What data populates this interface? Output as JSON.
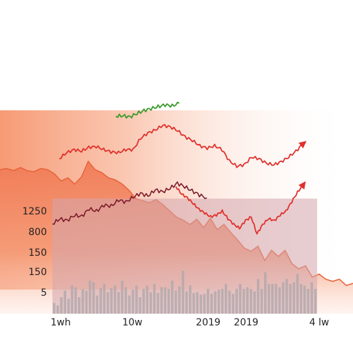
{
  "chart_data": {
    "type": "area",
    "title": "",
    "xlabel": "",
    "ylabel": "",
    "y_ticks": [
      "1250",
      "800",
      "150",
      "150",
      "5"
    ],
    "x_ticks": [
      "1wh",
      "10w",
      "2019",
      "2019",
      "4 lw"
    ],
    "grid": false,
    "legend": "none",
    "colors": {
      "area_fill": "#f27a5a",
      "area_edge": "#e8643c",
      "panel_fill": "#d4a5ad",
      "red_line": "#e0302c",
      "green_line": "#3a9a2a",
      "dark_line": "#7a1a2a",
      "bars": "#b0a8ab"
    },
    "series": [
      {
        "values": [
          0.36,
          0.37,
          0.35,
          0.38,
          0.35,
          0.34,
          0.37,
          0.36,
          0.32,
          0.25,
          0.28,
          0.22,
          0.29,
          0.44,
          0.36,
          0.33,
          0.28,
          0.26,
          0.22,
          0.16,
          0.08,
          0.06,
          0.04,
          0.07,
          0.02,
          -0.04,
          -0.1,
          -0.13,
          -0.17,
          -0.12,
          -0.2,
          -0.11,
          -0.22,
          -0.17,
          -0.25,
          -0.32,
          -0.4,
          -0.43,
          -0.38,
          -0.52,
          -0.42,
          -0.48,
          -0.42,
          -0.55,
          -0.6,
          -0.57,
          -0.68,
          -0.65,
          -0.7,
          -0.72,
          -0.7,
          -0.76,
          -0.74
        ]
      },
      {
        "values": [
          0.18,
          0.26,
          0.3,
          0.28,
          0.33,
          0.34,
          0.3,
          0.27,
          0.26,
          0.3,
          0.3,
          0.45,
          0.52,
          0.56,
          0.62,
          0.6,
          0.55,
          0.47,
          0.42,
          0.35,
          0.32,
          0.35,
          0.3,
          0.15,
          0.08,
          0.1,
          0.2,
          0.18,
          0.12,
          0.1,
          0.14,
          0.2,
          0.28,
          0.38
        ]
      },
      {
        "values": [
          0.3,
          0.31,
          0.28,
          0.37,
          0.45,
          0.5,
          0.55,
          0.6,
          0.57,
          0.64
        ]
      },
      {
        "values": [
          0.15,
          0.25,
          0.22,
          0.32,
          0.3,
          0.45,
          0.4,
          0.52,
          0.5,
          0.62,
          0.58,
          0.68,
          0.75,
          0.7,
          0.82,
          0.78,
          0.85,
          0.95,
          0.88,
          0.8,
          0.72,
          0.66
        ]
      },
      {
        "values": [
          0.13,
          0.1,
          0.2,
          0.28,
          0.18,
          0.34,
          0.32,
          0.2,
          0.3,
          0.28,
          0.4,
          0.38,
          0.22,
          0.31,
          0.36,
          0.26,
          0.31,
          0.34,
          0.26,
          0.4,
          0.32,
          0.22,
          0.29,
          0.34,
          0.2,
          0.3,
          0.34,
          0.26,
          0.36,
          0.25,
          0.32,
          0.32,
          0.3,
          0.4,
          0.28,
          0.33,
          0.52,
          0.27,
          0.34,
          0.25,
          0.26,
          0.23,
          0.24,
          0.3,
          0.24,
          0.27,
          0.29,
          0.3,
          0.36,
          0.28,
          0.24,
          0.3,
          0.36,
          0.3,
          0.32,
          0.3,
          0.27,
          0.42,
          0.3,
          0.5,
          0.36,
          0.36,
          0.36,
          0.32,
          0.38,
          0.42,
          0.36,
          0.38,
          0.48,
          0.36,
          0.34,
          0.3,
          0.38,
          0.3
        ]
      }
    ]
  }
}
